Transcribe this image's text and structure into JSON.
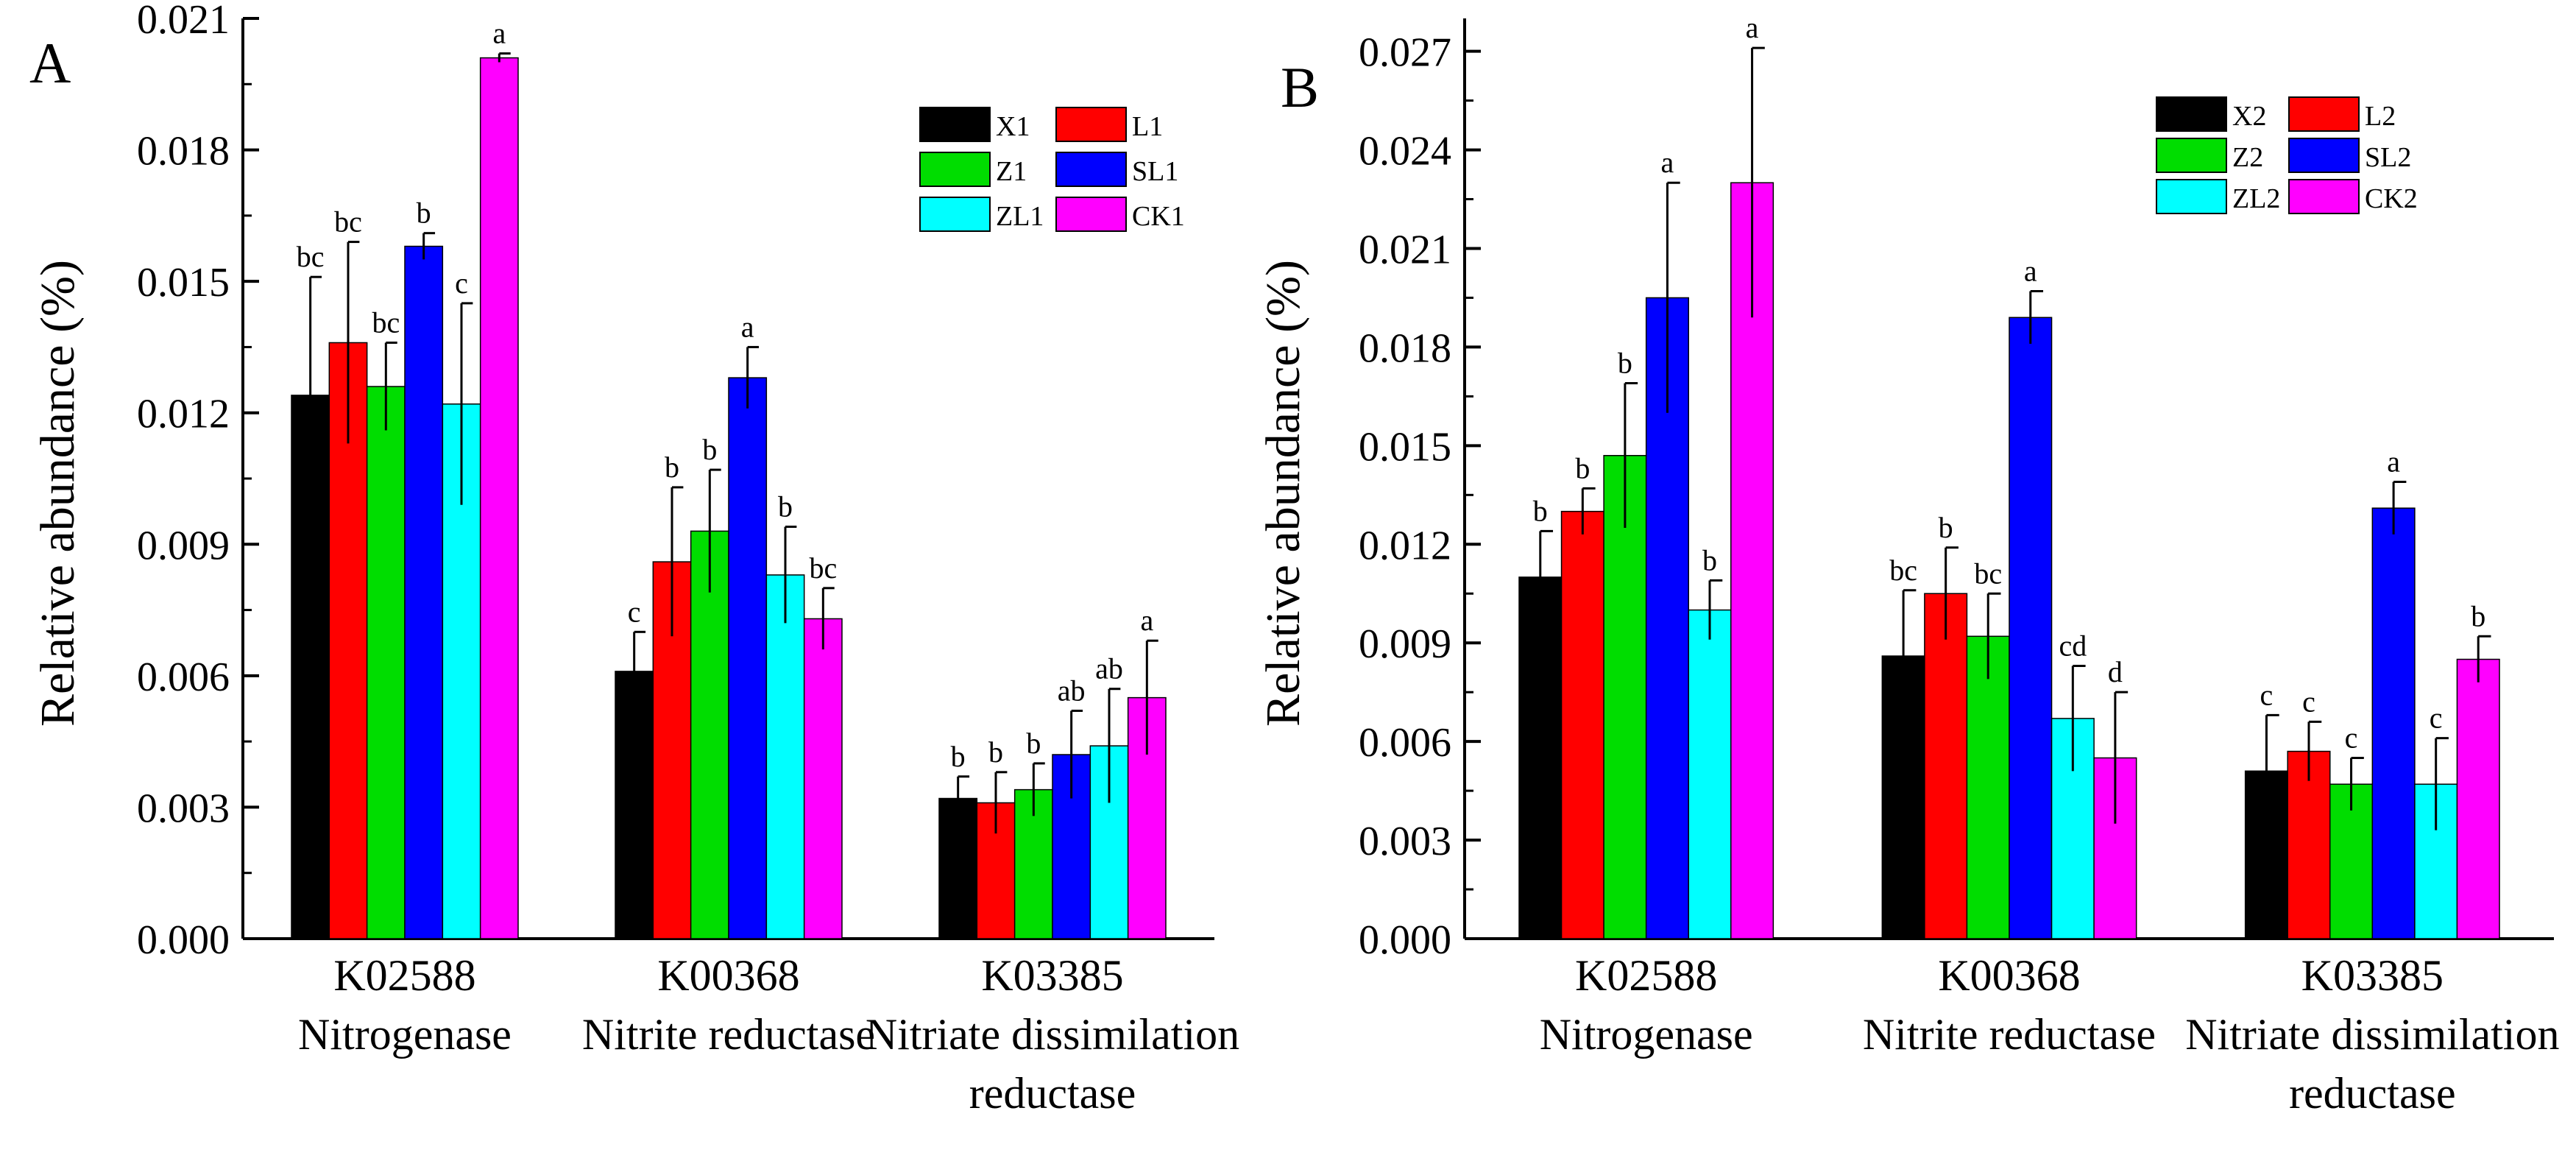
{
  "figure": {
    "panels": [
      {
        "label": "A",
        "chart_data": {
          "type": "bar",
          "ylabel": "Relative abundance (%)",
          "ylim": [
            0,
            0.021
          ],
          "yticks": [
            "0.000",
            "0.003",
            "0.006",
            "0.009",
            "0.012",
            "0.015",
            "0.018",
            "0.021"
          ],
          "categories": [
            {
              "code": "K02588",
              "name_lines": [
                "Nitrogenase"
              ]
            },
            {
              "code": "K00368",
              "name_lines": [
                "Nitrite reductase"
              ]
            },
            {
              "code": "K03385",
              "name_lines": [
                "Nitriate dissimilation",
                "reductase"
              ]
            }
          ],
          "series": [
            {
              "name": "X1",
              "color": "#000000",
              "values": [
                0.0124,
                0.0061,
                0.0032
              ],
              "errors": [
                0.0027,
                0.0009,
                0.0005
              ],
              "letters": [
                "bc",
                "c",
                "b"
              ]
            },
            {
              "name": "L1",
              "color": "#ff0000",
              "values": [
                0.0136,
                0.0086,
                0.0031
              ],
              "errors": [
                0.0023,
                0.0017,
                0.0007
              ],
              "letters": [
                "bc",
                "b",
                "b"
              ]
            },
            {
              "name": "Z1",
              "color": "#00dd00",
              "values": [
                0.0126,
                0.0093,
                0.0034
              ],
              "errors": [
                0.001,
                0.0014,
                0.0006
              ],
              "letters": [
                "bc",
                "b",
                "b"
              ]
            },
            {
              "name": "SL1",
              "color": "#0000ff",
              "values": [
                0.0158,
                0.0128,
                0.0042
              ],
              "errors": [
                0.0003,
                0.0007,
                0.001
              ],
              "letters": [
                "b",
                "a",
                "ab"
              ]
            },
            {
              "name": "ZL1",
              "color": "#00ffff",
              "values": [
                0.0122,
                0.0083,
                0.0044
              ],
              "errors": [
                0.0023,
                0.0011,
                0.0013
              ],
              "letters": [
                "c",
                "b",
                "ab"
              ]
            },
            {
              "name": "CK1",
              "color": "#ff00ff",
              "values": [
                0.0201,
                0.0073,
                0.0055
              ],
              "errors": [
                0.0001,
                0.0007,
                0.0013
              ],
              "letters": [
                "a",
                "bc",
                "a"
              ]
            }
          ]
        }
      },
      {
        "label": "B",
        "chart_data": {
          "type": "bar",
          "ylabel": "Relative abundance (%)",
          "ylim": [
            0,
            0.028
          ],
          "yticks": [
            "0.000",
            "0.003",
            "0.006",
            "0.009",
            "0.012",
            "0.015",
            "0.018",
            "0.021",
            "0.024",
            "0.027"
          ],
          "categories": [
            {
              "code": "K02588",
              "name_lines": [
                "Nitrogenase"
              ]
            },
            {
              "code": "K00368",
              "name_lines": [
                "Nitrite reductase"
              ]
            },
            {
              "code": "K03385",
              "name_lines": [
                "Nitriate dissimilation",
                "reductase"
              ]
            }
          ],
          "series": [
            {
              "name": "X2",
              "color": "#000000",
              "values": [
                0.011,
                0.0086,
                0.0051
              ],
              "errors": [
                0.0014,
                0.002,
                0.0017
              ],
              "letters": [
                "b",
                "bc",
                "c"
              ]
            },
            {
              "name": "L2",
              "color": "#ff0000",
              "values": [
                0.013,
                0.0105,
                0.0057
              ],
              "errors": [
                0.0007,
                0.0014,
                0.0009
              ],
              "letters": [
                "b",
                "b",
                "c"
              ]
            },
            {
              "name": "Z2",
              "color": "#00dd00",
              "values": [
                0.0147,
                0.0092,
                0.0047
              ],
              "errors": [
                0.0022,
                0.0013,
                0.0008
              ],
              "letters": [
                "b",
                "bc",
                "c"
              ]
            },
            {
              "name": "SL2",
              "color": "#0000ff",
              "values": [
                0.0195,
                0.0189,
                0.0131
              ],
              "errors": [
                0.0035,
                0.0008,
                0.0008
              ],
              "letters": [
                "a",
                "a",
                "a"
              ]
            },
            {
              "name": "ZL2",
              "color": "#00ffff",
              "values": [
                0.01,
                0.0067,
                0.0047
              ],
              "errors": [
                0.0009,
                0.0016,
                0.0014
              ],
              "letters": [
                "b",
                "cd",
                "c"
              ]
            },
            {
              "name": "CK2",
              "color": "#ff00ff",
              "values": [
                0.023,
                0.0055,
                0.0085
              ],
              "errors": [
                0.0041,
                0.002,
                0.0007
              ],
              "letters": [
                "a",
                "d",
                "b"
              ]
            }
          ]
        }
      }
    ]
  }
}
